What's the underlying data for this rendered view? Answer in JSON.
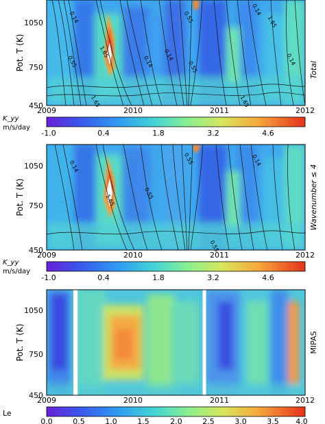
{
  "figure": {
    "time_ticks": [
      "2009",
      "2010",
      "2011",
      "2012"
    ],
    "ylabel": "Pot. T (K)",
    "y_ticks": [
      "1050",
      "750",
      "450"
    ]
  },
  "chart_data": [
    {
      "type": "heatmap",
      "panel": "top",
      "side_label": "Total",
      "x_range": [
        2009,
        2012
      ],
      "y_range": [
        450,
        1150
      ],
      "ylabel": "Pot. T (K)",
      "xticks": [
        "2009",
        "2010",
        "2011",
        "2012"
      ],
      "yticks": [
        "1050",
        "750",
        "450"
      ],
      "colorbar": {
        "label": "K_yy",
        "units": "m/s/day",
        "ticks": [
          "-1.0",
          "0.4",
          "1.8",
          "3.2",
          "4.6"
        ],
        "range": [
          -1.0,
          5.6
        ]
      },
      "contour_labels": [
        {
          "text": "0.14",
          "x": 2009.3,
          "y": 1030
        },
        {
          "text": "1.65",
          "x": 2009.65,
          "y": 800
        },
        {
          "text": "0.55",
          "x": 2009.28,
          "y": 735
        },
        {
          "text": "0.14",
          "x": 2010.16,
          "y": 735
        },
        {
          "text": "0.14",
          "x": 2010.4,
          "y": 780
        },
        {
          "text": "1.65",
          "x": 2009.55,
          "y": 472
        },
        {
          "text": "0.55",
          "x": 2010.63,
          "y": 1030
        },
        {
          "text": "0.55",
          "x": 2010.68,
          "y": 700
        },
        {
          "text": "0.14",
          "x": 2011.42,
          "y": 1080
        },
        {
          "text": "1.65",
          "x": 2011.6,
          "y": 1000
        },
        {
          "text": "0.14",
          "x": 2011.82,
          "y": 750
        },
        {
          "text": "1.65",
          "x": 2011.28,
          "y": 472
        }
      ],
      "features": [
        {
          "kind": "hotspot",
          "x": 2009.73,
          "y": 880,
          "value": 5.5
        },
        {
          "kind": "hotspot",
          "x": 2010.72,
          "y": 1145,
          "value": 4.5
        }
      ]
    },
    {
      "type": "heatmap",
      "panel": "middle",
      "side_label": "Wavenumber ≤ 4",
      "x_range": [
        2009,
        2012
      ],
      "y_range": [
        450,
        1150
      ],
      "ylabel": "Pot. T (K)",
      "xticks": [
        "2009",
        "2010",
        "2011",
        "2012"
      ],
      "yticks": [
        "1050",
        "750",
        "450"
      ],
      "colorbar": {
        "label": "K_yy",
        "units": "m/s/day",
        "ticks": [
          "-1.0",
          "0.4",
          "1.8",
          "3.2",
          "4.6"
        ],
        "range": [
          -1.0,
          5.6
        ]
      },
      "contour_labels": [
        {
          "text": "0.14",
          "x": 2009.3,
          "y": 1000
        },
        {
          "text": "1.65",
          "x": 2009.72,
          "y": 775
        },
        {
          "text": "0.55",
          "x": 2010.17,
          "y": 820
        },
        {
          "text": "0.55",
          "x": 2010.63,
          "y": 1050
        },
        {
          "text": "0.14",
          "x": 2011.42,
          "y": 1040
        },
        {
          "text": "0.55",
          "x": 2010.93,
          "y": 470
        }
      ],
      "features": [
        {
          "kind": "hotspot",
          "x": 2009.73,
          "y": 850,
          "value": 5.6
        },
        {
          "kind": "hotspot",
          "x": 2010.72,
          "y": 1140,
          "value": 4.2
        }
      ]
    },
    {
      "type": "heatmap",
      "panel": "bottom",
      "side_label": "MIPAS",
      "x_range": [
        2009,
        2012
      ],
      "y_range": [
        450,
        1150
      ],
      "ylabel": "Pot. T (K)",
      "xticks": [
        "2009",
        "2010",
        "2011",
        "2012"
      ],
      "yticks": [
        "1050",
        "750",
        "450"
      ],
      "colorbar": {
        "label": "Le",
        "units": "",
        "ticks": [
          "0.0",
          "0.5",
          "1.0",
          "1.5",
          "2.0",
          "2.5",
          "3.0",
          "3.5",
          "4.0"
        ],
        "range": [
          0.0,
          4.0
        ]
      },
      "data_gaps": [
        [
          2009.31,
          2009.36
        ],
        [
          2010.81,
          2010.85
        ]
      ],
      "contour_labels": [],
      "features": []
    }
  ]
}
